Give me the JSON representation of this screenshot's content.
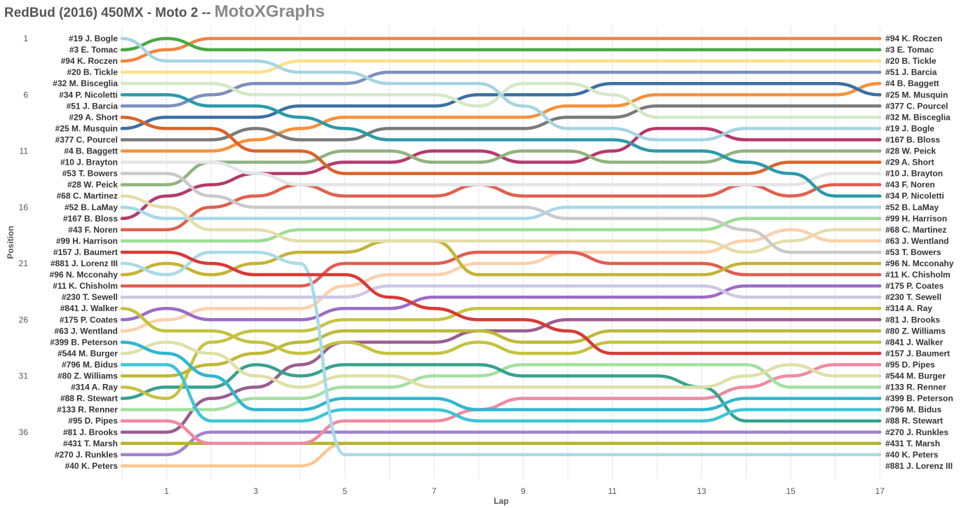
{
  "title": {
    "main": "RedBud (2016) 450MX - Moto 2 -- ",
    "brand": "MotoXGraphs"
  },
  "chart_data": {
    "type": "line",
    "xlabel": "Lap",
    "ylabel": "Position",
    "xlim": [
      0,
      17
    ],
    "ylim": [
      1,
      38
    ],
    "x_ticks": [
      1,
      3,
      5,
      7,
      9,
      11,
      13,
      15,
      17
    ],
    "y_ticks": [
      1,
      6,
      11,
      16,
      21,
      26,
      31,
      36
    ],
    "y_inverted": true,
    "grid": "vertical",
    "series": [
      {
        "name": "#19 J. Bogle",
        "color": "#a6d4e0",
        "values": [
          1,
          3,
          3,
          3,
          4,
          4,
          5,
          5,
          5,
          7,
          9,
          9,
          10,
          10,
          9,
          9,
          9,
          9
        ]
      },
      {
        "name": "#3 E. Tomac",
        "color": "#4aa943",
        "values": [
          2,
          1,
          2,
          2,
          2,
          2,
          2,
          2,
          2,
          2,
          2,
          2,
          2,
          2,
          2,
          2,
          2,
          2
        ]
      },
      {
        "name": "#94 K. Roczen",
        "color": "#f08540",
        "values": [
          3,
          2,
          1,
          1,
          1,
          1,
          1,
          1,
          1,
          1,
          1,
          1,
          1,
          1,
          1,
          1,
          1,
          1
        ]
      },
      {
        "name": "#20 B. Tickle",
        "color": "#fce08a",
        "values": [
          4,
          4,
          4,
          4,
          3,
          3,
          3,
          3,
          3,
          3,
          3,
          3,
          3,
          3,
          3,
          3,
          3,
          3
        ]
      },
      {
        "name": "#32 M. Bisceglia",
        "color": "#d3e8c7",
        "values": [
          5,
          5,
          5,
          6,
          6,
          6,
          6,
          6,
          7,
          5,
          5,
          6,
          8,
          8,
          8,
          8,
          8,
          8
        ]
      },
      {
        "name": "#34 P. Nicoletti",
        "color": "#2b9aa9",
        "values": [
          6,
          6,
          7,
          7,
          8,
          9,
          10,
          10,
          10,
          10,
          10,
          10,
          11,
          11,
          12,
          13,
          15,
          15
        ]
      },
      {
        "name": "#51 J. Barcia",
        "color": "#7d8ebf",
        "values": [
          7,
          7,
          6,
          5,
          5,
          5,
          4,
          4,
          4,
          4,
          4,
          4,
          4,
          4,
          4,
          4,
          4,
          4
        ]
      },
      {
        "name": "#29 A. Short",
        "color": "#dc6329",
        "values": [
          8,
          9,
          9,
          11,
          11,
          13,
          13,
          13,
          13,
          13,
          13,
          13,
          13,
          13,
          13,
          12,
          12,
          12
        ]
      },
      {
        "name": "#25 M. Musquin",
        "color": "#3c6fa4",
        "values": [
          9,
          8,
          8,
          8,
          7,
          7,
          7,
          7,
          6,
          6,
          6,
          5,
          5,
          5,
          5,
          5,
          5,
          6
        ]
      },
      {
        "name": "#377 C. Pourcel",
        "color": "#7a7a7a",
        "values": [
          10,
          10,
          10,
          9,
          10,
          10,
          9,
          9,
          9,
          9,
          8,
          8,
          7,
          7,
          7,
          7,
          7,
          7
        ]
      },
      {
        "name": "#4 B. Baggett",
        "color": "#f7913a",
        "values": [
          11,
          11,
          11,
          10,
          9,
          8,
          8,
          8,
          8,
          8,
          7,
          7,
          6,
          6,
          6,
          6,
          6,
          5
        ]
      },
      {
        "name": "#10 J. Brayton",
        "color": "#e4e4e9",
        "values": [
          12,
          12,
          12,
          13,
          14,
          14,
          14,
          14,
          14,
          14,
          14,
          14,
          14,
          14,
          14,
          14,
          13,
          13
        ]
      },
      {
        "name": "#53 T. Bowers",
        "color": "#c9c9c9",
        "values": [
          13,
          13,
          15,
          16,
          16,
          16,
          16,
          16,
          16,
          16,
          17,
          17,
          17,
          17,
          18,
          20,
          20,
          20
        ]
      },
      {
        "name": "#28 W. Peick",
        "color": "#8fb47e",
        "values": [
          14,
          14,
          12,
          12,
          12,
          11,
          11,
          12,
          12,
          11,
          11,
          12,
          12,
          12,
          11,
          11,
          11,
          11
        ]
      },
      {
        "name": "#68 C. Martinez",
        "color": "#e3deaa",
        "values": [
          15,
          16,
          18,
          18,
          19,
          19,
          19,
          19,
          19,
          19,
          19,
          19,
          19,
          19,
          20,
          19,
          18,
          18
        ]
      },
      {
        "name": "#52 B. LaMay",
        "color": "#a8d7ea",
        "values": [
          16,
          17,
          17,
          17,
          17,
          17,
          17,
          17,
          17,
          17,
          16,
          16,
          16,
          16,
          16,
          16,
          16,
          16
        ]
      },
      {
        "name": "#167 B. Bloss",
        "color": "#b53a6c",
        "values": [
          17,
          15,
          14,
          13,
          13,
          12,
          12,
          11,
          11,
          12,
          12,
          11,
          9,
          9,
          10,
          10,
          10,
          10
        ]
      },
      {
        "name": "#43 F. Noren",
        "color": "#e0604e",
        "values": [
          18,
          18,
          16,
          15,
          14,
          15,
          15,
          15,
          14,
          15,
          15,
          15,
          15,
          15,
          14,
          15,
          14,
          14
        ]
      },
      {
        "name": "#99 H. Harrison",
        "color": "#9bde93",
        "values": [
          19,
          19,
          19,
          19,
          18,
          18,
          18,
          18,
          18,
          18,
          18,
          18,
          18,
          18,
          17,
          17,
          17,
          17
        ]
      },
      {
        "name": "#157 J. Baumert",
        "color": "#d83a36",
        "values": [
          20,
          20,
          21,
          22,
          22,
          22,
          24,
          25,
          26,
          26,
          27,
          29,
          29,
          29,
          29,
          29,
          29,
          29
        ]
      },
      {
        "name": "#881 J. Lorenz III",
        "color": "#a8dbe6",
        "values": [
          21,
          22,
          20,
          20,
          21,
          38,
          38,
          38,
          38,
          38,
          38,
          38,
          38,
          38,
          38,
          38,
          38,
          38
        ]
      },
      {
        "name": "#96 N. Mcconahy",
        "color": "#c5b335",
        "values": [
          22,
          21,
          22,
          21,
          20,
          20,
          19,
          19,
          22,
          22,
          22,
          22,
          22,
          22,
          21,
          21,
          21,
          21
        ]
      },
      {
        "name": "#11 K. Chisholm",
        "color": "#e15d52",
        "values": [
          23,
          23,
          23,
          23,
          23,
          21,
          21,
          21,
          20,
          20,
          20,
          21,
          21,
          21,
          22,
          22,
          22,
          22
        ]
      },
      {
        "name": "#230 T. Sewell",
        "color": "#cdc6e4",
        "values": [
          24,
          24,
          24,
          24,
          24,
          24,
          23,
          23,
          23,
          23,
          23,
          23,
          23,
          23,
          24,
          24,
          24,
          24
        ]
      },
      {
        "name": "#841 J. Walker",
        "color": "#c3c23d",
        "values": [
          25,
          27,
          27,
          28,
          29,
          28,
          29,
          29,
          28,
          29,
          29,
          28,
          28,
          28,
          28,
          28,
          28,
          28
        ]
      },
      {
        "name": "#175 P. Coates",
        "color": "#9c6cc8",
        "values": [
          26,
          25,
          26,
          26,
          26,
          25,
          25,
          24,
          24,
          24,
          24,
          24,
          24,
          24,
          23,
          23,
          23,
          23
        ]
      },
      {
        "name": "#63 J. Wentland",
        "color": "#fdd0aa",
        "values": [
          27,
          26,
          25,
          25,
          25,
          23,
          22,
          22,
          21,
          21,
          20,
          20,
          20,
          20,
          19,
          18,
          19,
          19
        ]
      },
      {
        "name": "#399 B. Peterson",
        "color": "#31b6cf",
        "values": [
          28,
          29,
          31,
          34,
          34,
          33,
          33,
          33,
          34,
          34,
          34,
          34,
          34,
          34,
          33,
          33,
          33,
          33
        ]
      },
      {
        "name": "#544 M. Burger",
        "color": "#dfdfa8",
        "values": [
          29,
          28,
          29,
          31,
          32,
          31,
          31,
          32,
          32,
          32,
          32,
          32,
          32,
          32,
          31,
          30,
          31,
          31
        ]
      },
      {
        "name": "#796 M. Bidus",
        "color": "#3fc4d7",
        "values": [
          30,
          30,
          35,
          35,
          35,
          34,
          34,
          34,
          35,
          35,
          35,
          35,
          35,
          35,
          34,
          34,
          34,
          34
        ]
      },
      {
        "name": "#80 Z. Williams",
        "color": "#bdb937",
        "values": [
          31,
          31,
          30,
          29,
          28,
          27,
          27,
          27,
          27,
          28,
          28,
          27,
          27,
          27,
          27,
          27,
          27,
          27
        ]
      },
      {
        "name": "#314 A. Ray",
        "color": "#c6c344",
        "values": [
          32,
          33,
          28,
          27,
          27,
          26,
          26,
          26,
          25,
          25,
          25,
          25,
          25,
          25,
          25,
          25,
          25,
          25
        ]
      },
      {
        "name": "#88 R. Stewart",
        "color": "#36a28d",
        "values": [
          33,
          32,
          32,
          30,
          31,
          30,
          30,
          30,
          30,
          31,
          31,
          31,
          31,
          32,
          35,
          35,
          35,
          35
        ]
      },
      {
        "name": "#133 R. Renner",
        "color": "#a3e0a0",
        "values": [
          34,
          34,
          34,
          33,
          33,
          32,
          32,
          31,
          31,
          30,
          30,
          30,
          30,
          30,
          30,
          32,
          32,
          32
        ]
      },
      {
        "name": "#95 D. Pipes",
        "color": "#ef8aa0",
        "values": [
          35,
          35,
          37,
          37,
          37,
          35,
          35,
          35,
          34,
          33,
          33,
          33,
          33,
          33,
          32,
          31,
          30,
          30
        ]
      },
      {
        "name": "#81 J. Brooks",
        "color": "#9a5d91",
        "values": [
          36,
          36,
          33,
          32,
          30,
          28,
          28,
          28,
          27,
          27,
          26,
          26,
          26,
          26,
          26,
          26,
          26,
          26
        ]
      },
      {
        "name": "#431 T. Marsh",
        "color": "#b6b42e",
        "values": [
          37,
          37,
          37,
          37,
          37,
          37,
          37,
          37,
          37,
          37,
          37,
          37,
          37,
          37,
          37,
          37,
          37,
          37
        ]
      },
      {
        "name": "#270 J. Runkles",
        "color": "#a084cf",
        "values": [
          38,
          38,
          36,
          36,
          36,
          36,
          36,
          36,
          36,
          36,
          36,
          36,
          36,
          36,
          36,
          36,
          36,
          36
        ]
      },
      {
        "name": "#40 K. Peters",
        "color": "#fdc791",
        "values": [
          39,
          39,
          39,
          39,
          39,
          37,
          37,
          37,
          37,
          37,
          37,
          37,
          37,
          37,
          37,
          37,
          37,
          37
        ]
      }
    ],
    "start_order": [
      "#19 J. Bogle",
      "#3 E. Tomac",
      "#94 K. Roczen",
      "#20 B. Tickle",
      "#32 M. Bisceglia",
      "#34 P. Nicoletti",
      "#51 J. Barcia",
      "#29 A. Short",
      "#25 M. Musquin",
      "#377 C. Pourcel",
      "#4 B. Baggett",
      "#10 J. Brayton",
      "#53 T. Bowers",
      "#28 W. Peick",
      "#68 C. Martinez",
      "#52 B. LaMay",
      "#167 B. Bloss",
      "#43 F. Noren",
      "#99 H. Harrison",
      "#157 J. Baumert",
      "#881 J. Lorenz III",
      "#96 N. Mcconahy",
      "#11 K. Chisholm",
      "#230 T. Sewell",
      "#841 J. Walker",
      "#175 P. Coates",
      "#63 J. Wentland",
      "#399 B. Peterson",
      "#544 M. Burger",
      "#796 M. Bidus",
      "#80 Z. Williams",
      "#314 A. Ray",
      "#88 R. Stewart",
      "#133 R. Renner",
      "#95 D. Pipes",
      "#81 J. Brooks",
      "#431 T. Marsh",
      "#270 J. Runkles",
      "#40 K. Peters"
    ],
    "finish_order": [
      "#94 K. Roczen",
      "#3 E. Tomac",
      "#20 B. Tickle",
      "#51 J. Barcia",
      "#4 B. Baggett",
      "#25 M. Musquin",
      "#377 C. Pourcel",
      "#32 M. Bisceglia",
      "#19 J. Bogle",
      "#167 B. Bloss",
      "#28 W. Peick",
      "#29 A. Short",
      "#10 J. Brayton",
      "#43 F. Noren",
      "#34 P. Nicoletti",
      "#52 B. LaMay",
      "#99 H. Harrison",
      "#68 C. Martinez",
      "#63 J. Wentland",
      "#53 T. Bowers",
      "#96 N. Mcconahy",
      "#11 K. Chisholm",
      "#175 P. Coates",
      "#230 T. Sewell",
      "#314 A. Ray",
      "#81 J. Brooks",
      "#80 Z. Williams",
      "#841 J. Walker",
      "#157 J. Baumert",
      "#95 D. Pipes",
      "#544 M. Burger",
      "#133 R. Renner",
      "#399 B. Peterson",
      "#796 M. Bidus",
      "#88 R. Stewart",
      "#270 J. Runkles",
      "#431 T. Marsh",
      "#40 K. Peters",
      "#881 J. Lorenz III"
    ]
  }
}
